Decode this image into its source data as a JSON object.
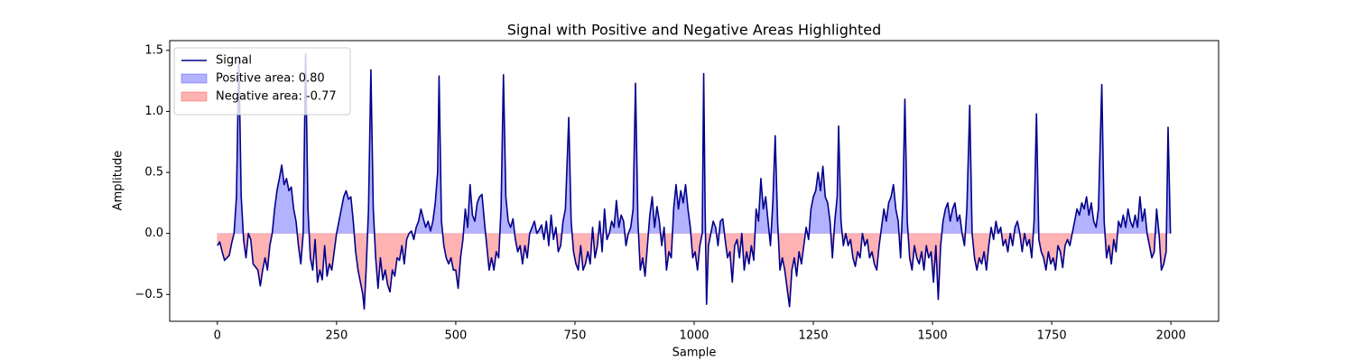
{
  "chart_data": {
    "type": "line",
    "title": "Signal with Positive and Negative Areas Highlighted",
    "x_label": "Sample",
    "y_label": "Amplitude",
    "xlim": [
      -100,
      2100
    ],
    "ylim": [
      -0.72,
      1.58
    ],
    "xticks": [
      0,
      250,
      500,
      750,
      1000,
      1250,
      1500,
      1750,
      2000
    ],
    "yticks": [
      {
        "value": -0.5,
        "label": "−0.5"
      },
      {
        "value": 0.0,
        "label": "0.0"
      },
      {
        "value": 0.5,
        "label": "0.5"
      },
      {
        "value": 1.0,
        "label": "1.0"
      },
      {
        "value": 1.5,
        "label": "1.5"
      }
    ],
    "legend": "upper left",
    "x": [
      0,
      5,
      10,
      15,
      25,
      30,
      35,
      40,
      45,
      50,
      55,
      60,
      65,
      70,
      75,
      85,
      90,
      95,
      100,
      105,
      110,
      115,
      120,
      125,
      130,
      135,
      140,
      145,
      150,
      155,
      160,
      165,
      170,
      175,
      180,
      185,
      190,
      195,
      200,
      205,
      210,
      215,
      220,
      225,
      230,
      235,
      240,
      245,
      250,
      255,
      260,
      265,
      270,
      275,
      280,
      285,
      290,
      295,
      300,
      305,
      308,
      312,
      317,
      322,
      327,
      332,
      337,
      342,
      347,
      352,
      357,
      362,
      367,
      372,
      377,
      382,
      387,
      392,
      397,
      402,
      407,
      412,
      417,
      422,
      427,
      432,
      437,
      442,
      447,
      452,
      457,
      462,
      465,
      470,
      475,
      480,
      485,
      490,
      495,
      500,
      505,
      510,
      515,
      520,
      525,
      530,
      535,
      540,
      545,
      550,
      555,
      560,
      565,
      570,
      575,
      580,
      585,
      590,
      595,
      600,
      605,
      610,
      615,
      620,
      625,
      630,
      635,
      640,
      645,
      650,
      655,
      660,
      665,
      670,
      675,
      680,
      685,
      690,
      695,
      700,
      705,
      710,
      715,
      720,
      725,
      730,
      737,
      742,
      747,
      752,
      757,
      762,
      767,
      772,
      777,
      782,
      787,
      792,
      797,
      802,
      807,
      812,
      817,
      822,
      827,
      832,
      837,
      842,
      847,
      852,
      857,
      862,
      867,
      872,
      877,
      882,
      887,
      892,
      897,
      902,
      907,
      912,
      917,
      922,
      927,
      932,
      937,
      942,
      947,
      952,
      957,
      962,
      967,
      972,
      977,
      982,
      987,
      992,
      997,
      1002,
      1007,
      1012,
      1017,
      1020,
      1023,
      1026,
      1030,
      1035,
      1040,
      1045,
      1050,
      1055,
      1060,
      1065,
      1070,
      1075,
      1080,
      1085,
      1090,
      1095,
      1100,
      1105,
      1110,
      1115,
      1120,
      1125,
      1130,
      1135,
      1140,
      1145,
      1150,
      1155,
      1160,
      1165,
      1170,
      1175,
      1180,
      1185,
      1190,
      1195,
      1200,
      1205,
      1210,
      1215,
      1220,
      1225,
      1230,
      1235,
      1240,
      1245,
      1250,
      1255,
      1260,
      1265,
      1270,
      1275,
      1280,
      1285,
      1290,
      1295,
      1300,
      1303,
      1308,
      1313,
      1318,
      1323,
      1328,
      1333,
      1338,
      1343,
      1348,
      1353,
      1358,
      1363,
      1368,
      1373,
      1378,
      1383,
      1388,
      1393,
      1398,
      1403,
      1408,
      1413,
      1418,
      1423,
      1428,
      1433,
      1438,
      1442,
      1447,
      1452,
      1457,
      1462,
      1467,
      1472,
      1477,
      1482,
      1487,
      1492,
      1497,
      1502,
      1507,
      1512,
      1517,
      1522,
      1527,
      1532,
      1537,
      1542,
      1547,
      1552,
      1557,
      1562,
      1567,
      1572,
      1578,
      1583,
      1588,
      1593,
      1598,
      1603,
      1608,
      1613,
      1618,
      1623,
      1628,
      1633,
      1638,
      1643,
      1648,
      1653,
      1658,
      1663,
      1668,
      1673,
      1678,
      1683,
      1688,
      1693,
      1698,
      1703,
      1708,
      1713,
      1718,
      1723,
      1728,
      1733,
      1738,
      1743,
      1748,
      1753,
      1758,
      1763,
      1768,
      1773,
      1778,
      1783,
      1788,
      1793,
      1798,
      1803,
      1808,
      1813,
      1818,
      1823,
      1828,
      1833,
      1838,
      1843,
      1848,
      1855,
      1860,
      1865,
      1870,
      1875,
      1880,
      1885,
      1890,
      1895,
      1900,
      1905,
      1910,
      1915,
      1920,
      1925,
      1930,
      1935,
      1940,
      1945,
      1950,
      1955,
      1960,
      1965,
      1970,
      1975,
      1980,
      1985,
      1990,
      1994,
      1999
    ],
    "series": [
      {
        "name": "Signal",
        "color": "#00008b",
        "values": [
          -0.1,
          -0.07,
          -0.15,
          -0.22,
          -0.18,
          -0.08,
          0.0,
          0.3,
          1.45,
          0.3,
          -0.05,
          -0.2,
          0.0,
          -0.05,
          -0.25,
          -0.3,
          -0.43,
          -0.3,
          -0.2,
          -0.3,
          -0.1,
          0.0,
          0.2,
          0.35,
          0.45,
          0.56,
          0.4,
          0.45,
          0.35,
          0.38,
          0.2,
          0.1,
          -0.1,
          -0.25,
          0.0,
          1.47,
          0.2,
          -0.2,
          -0.3,
          -0.05,
          -0.4,
          -0.3,
          -0.38,
          -0.1,
          -0.35,
          -0.25,
          -0.3,
          -0.15,
          0.0,
          0.1,
          0.2,
          0.3,
          0.35,
          0.28,
          0.3,
          0.1,
          -0.15,
          -0.3,
          -0.4,
          -0.5,
          -0.62,
          -0.3,
          0.2,
          1.34,
          0.2,
          -0.2,
          -0.45,
          -0.2,
          -0.38,
          -0.3,
          -0.42,
          -0.48,
          -0.3,
          -0.35,
          -0.2,
          -0.22,
          -0.1,
          -0.25,
          -0.05,
          0.0,
          0.02,
          -0.05,
          0.05,
          0.1,
          0.2,
          0.12,
          0.05,
          0.1,
          0.02,
          0.1,
          0.25,
          0.5,
          1.29,
          0.1,
          -0.1,
          -0.2,
          -0.25,
          -0.2,
          -0.3,
          -0.3,
          -0.45,
          -0.2,
          -0.05,
          0.2,
          0.05,
          0.4,
          0.15,
          0.1,
          0.25,
          0.3,
          0.32,
          0.1,
          -0.1,
          -0.3,
          -0.2,
          -0.3,
          -0.15,
          -0.2,
          0.2,
          1.3,
          0.3,
          0.1,
          0.05,
          0.12,
          -0.05,
          -0.15,
          -0.1,
          -0.25,
          -0.1,
          -0.2,
          0.0,
          0.05,
          0.1,
          0.0,
          0.03,
          0.07,
          -0.05,
          0.1,
          -0.1,
          0.15,
          -0.05,
          0.05,
          -0.15,
          -0.1,
          0.1,
          0.2,
          0.95,
          0.1,
          -0.15,
          -0.25,
          -0.3,
          -0.1,
          -0.3,
          -0.25,
          -0.15,
          -0.25,
          0.05,
          -0.2,
          -0.1,
          0.1,
          -0.15,
          0.2,
          -0.05,
          0.0,
          0.1,
          0.05,
          0.27,
          0.05,
          0.15,
          0.1,
          -0.1,
          0.0,
          0.05,
          0.2,
          1.23,
          0.1,
          -0.3,
          -0.2,
          -0.35,
          -0.1,
          0.15,
          0.3,
          0.05,
          0.22,
          0.1,
          -0.1,
          0.05,
          -0.3,
          -0.15,
          -0.2,
          0.2,
          0.4,
          0.2,
          0.35,
          0.25,
          0.4,
          0.2,
          0.05,
          -0.2,
          -0.15,
          -0.3,
          -0.1,
          0.0,
          1.31,
          0.2,
          -0.58,
          -0.1,
          0.0,
          0.1,
          0.05,
          -0.1,
          0.1,
          0.12,
          -0.05,
          -0.2,
          -0.15,
          -0.4,
          -0.1,
          -0.05,
          -0.2,
          0.0,
          -0.3,
          -0.15,
          -0.25,
          -0.1,
          -0.22,
          0.2,
          0.1,
          0.45,
          0.2,
          0.3,
          0.1,
          -0.1,
          0.25,
          0.8,
          0.1,
          -0.3,
          -0.2,
          -0.3,
          -0.45,
          -0.6,
          -0.3,
          -0.2,
          -0.35,
          -0.15,
          -0.25,
          -0.1,
          0.05,
          -0.05,
          0.2,
          0.3,
          0.35,
          0.5,
          0.35,
          0.55,
          0.3,
          0.25,
          0.1,
          -0.2,
          0.1,
          0.3,
          0.88,
          0.1,
          -0.1,
          0.0,
          -0.1,
          -0.05,
          -0.2,
          -0.27,
          -0.15,
          -0.2,
          0.0,
          -0.1,
          -0.05,
          -0.2,
          -0.15,
          -0.25,
          -0.3,
          -0.1,
          0.05,
          0.2,
          0.1,
          0.25,
          0.3,
          0.4,
          0.2,
          0.1,
          -0.2,
          0.3,
          1.1,
          0.1,
          -0.2,
          -0.3,
          -0.1,
          -0.2,
          -0.25,
          -0.15,
          -0.3,
          -0.1,
          -0.2,
          -0.15,
          -0.4,
          -0.1,
          -0.54,
          -0.1,
          0.1,
          0.2,
          0.25,
          0.1,
          0.2,
          0.25,
          0.1,
          0.15,
          0.0,
          -0.1,
          0.2,
          1.05,
          0.0,
          -0.2,
          -0.3,
          -0.2,
          -0.25,
          -0.15,
          -0.3,
          -0.1,
          0.05,
          -0.05,
          0.1,
          0.0,
          0.05,
          -0.1,
          -0.05,
          -0.15,
          0.0,
          -0.1,
          0.05,
          0.1,
          0.0,
          -0.15,
          0.0,
          -0.1,
          -0.05,
          -0.2,
          0.1,
          0.98,
          -0.05,
          -0.15,
          -0.2,
          -0.3,
          -0.15,
          -0.25,
          -0.2,
          -0.3,
          -0.1,
          -0.15,
          -0.28,
          -0.1,
          -0.05,
          -0.1,
          0.0,
          0.1,
          0.2,
          0.15,
          0.25,
          0.2,
          0.3,
          0.15,
          0.25,
          0.1,
          0.05,
          0.2,
          1.22,
          0.1,
          -0.2,
          -0.1,
          -0.25,
          -0.05,
          -0.15,
          0.1,
          0.05,
          0.15,
          0.05,
          0.2,
          0.1,
          0.05,
          0.15,
          0.05,
          0.3,
          0.1,
          0.2,
          0.0,
          -0.1,
          -0.2,
          -0.15,
          0.2,
          0.0,
          -0.3,
          -0.25,
          -0.15,
          0.87,
          0.0
        ]
      }
    ],
    "areas": [
      {
        "name": "Positive area: 0.80",
        "color": "#0000ff",
        "opacity": 0.3,
        "side": "above"
      },
      {
        "name": "Negative area: -0.77",
        "color": "#ff0000",
        "opacity": 0.3,
        "side": "below"
      }
    ]
  }
}
